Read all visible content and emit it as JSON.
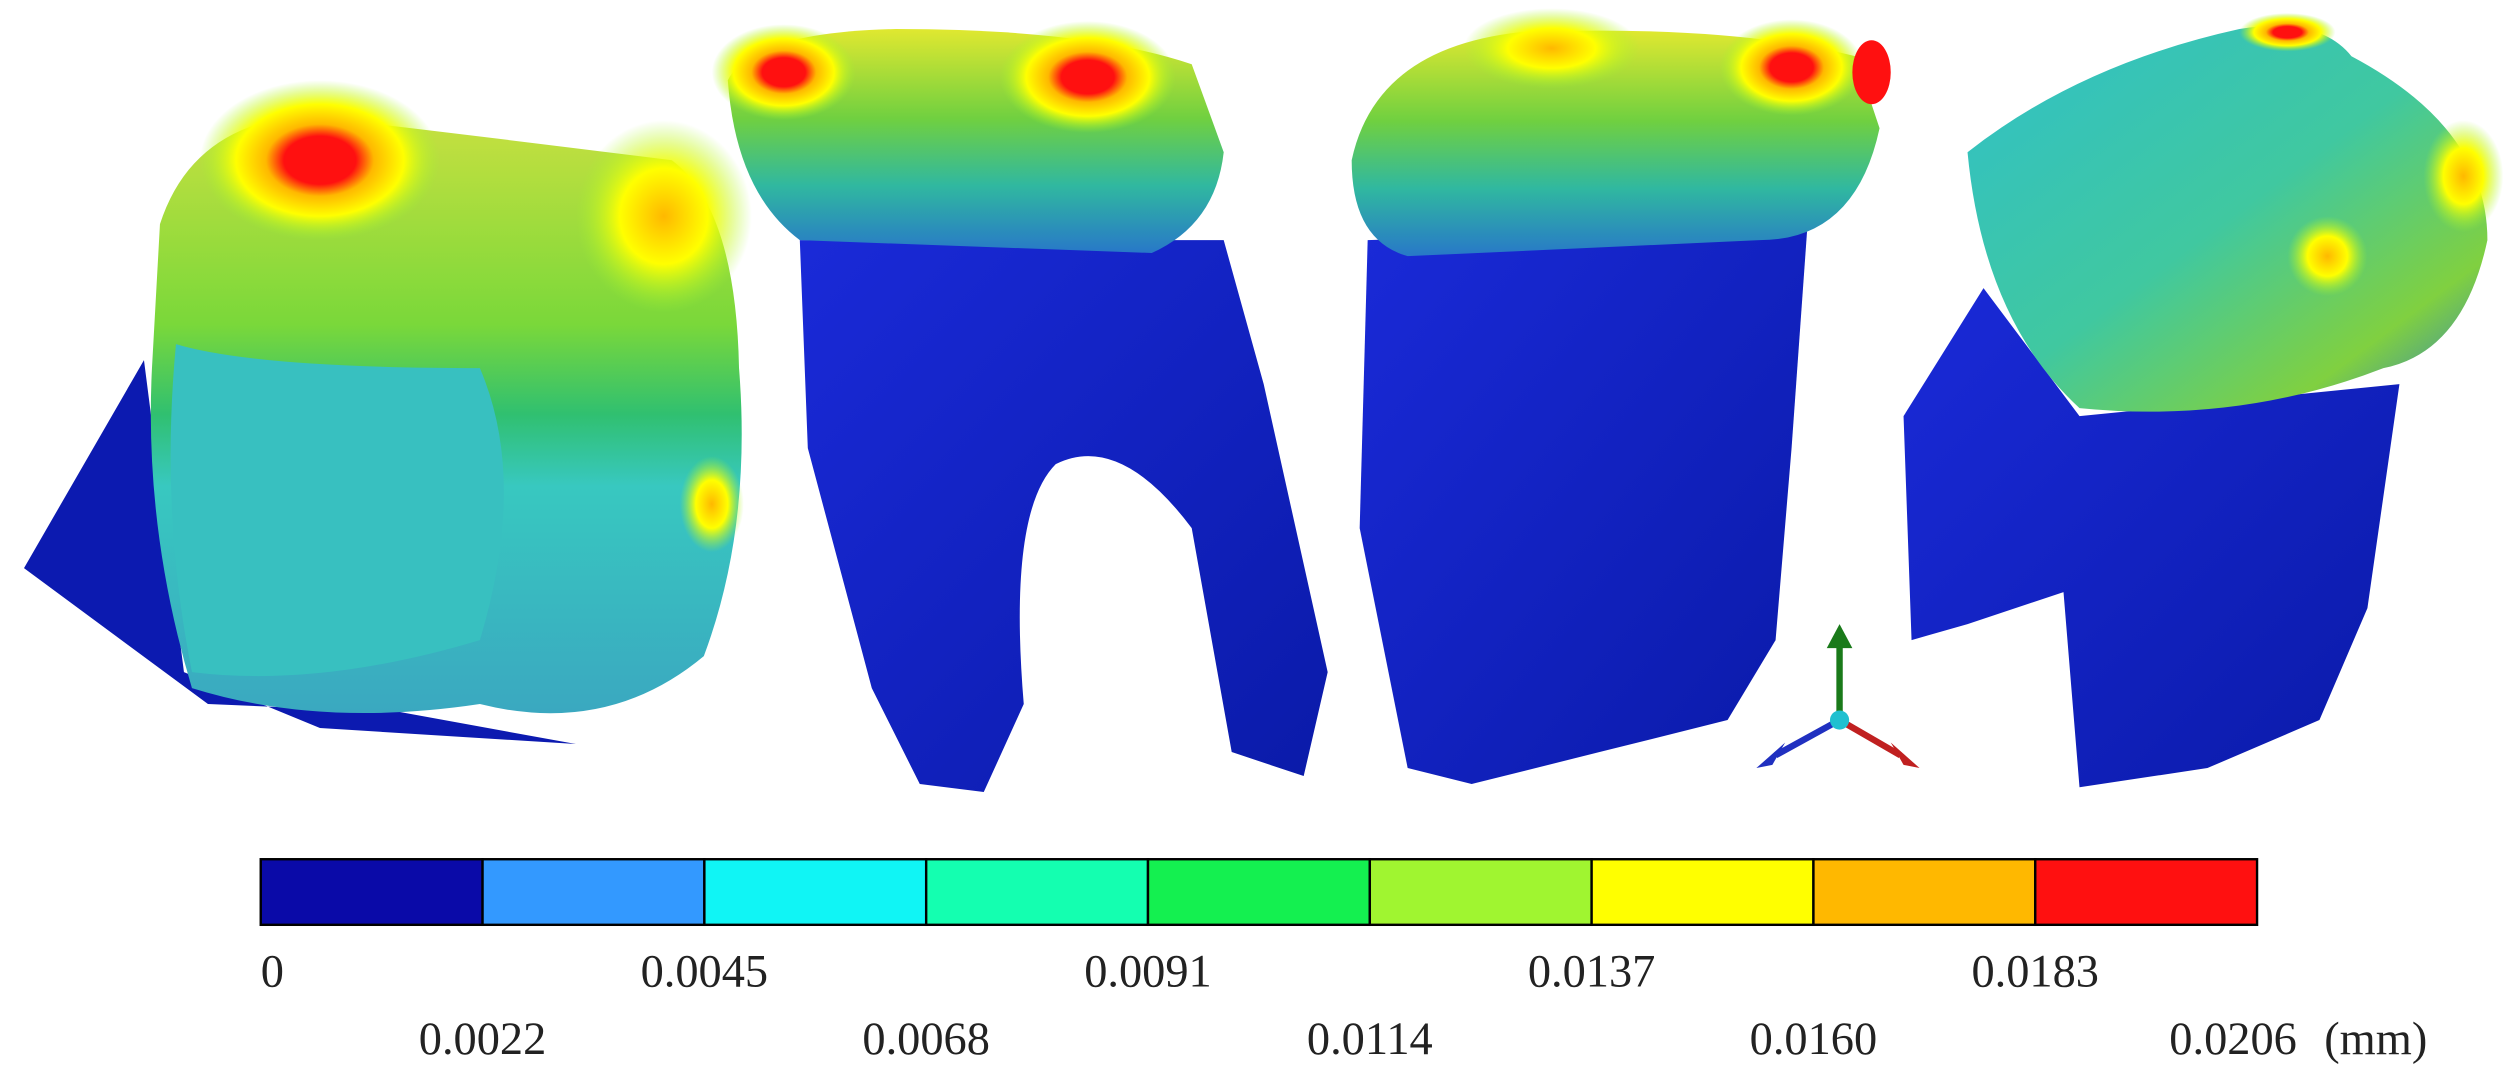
{
  "legend": {
    "colors": [
      "#0a0aa8",
      "#3399ff",
      "#10f5f5",
      "#14ffb0",
      "#14f050",
      "#a0f530",
      "#ffff00",
      "#ffb800",
      "#ff1010"
    ],
    "labels": [
      "0",
      "0.0022",
      "0.0045",
      "0.0068",
      "0.0091",
      "0.0114",
      "0.0137",
      "0.0160",
      "0.0183",
      "0.0206"
    ],
    "unit": "(mm)"
  }
}
